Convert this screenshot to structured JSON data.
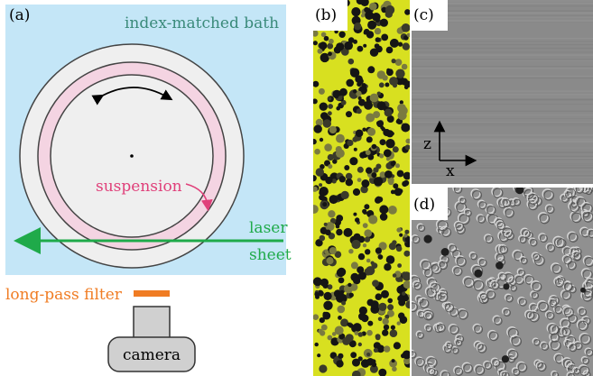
{
  "panel_a": {
    "label": "(a)",
    "bath_label": "index-matched bath",
    "suspension_label": "suspension",
    "laser_label_line1": "laser",
    "laser_label_line2": "sheet",
    "filter_label": "long-pass filter",
    "camera_label": "camera"
  },
  "panel_b": {
    "label": "(b)"
  },
  "panel_c": {
    "label": "(c)",
    "axis_z": "z",
    "axis_x": "x"
  },
  "panel_d": {
    "label": "(d)"
  },
  "colors": {
    "bath": "#c4e6f7",
    "ring_fill": "#f4d4e2",
    "vessel": "#efefef",
    "laser": "#1faa4a",
    "filter": "#f07c23",
    "suspension_text": "#e0407a",
    "bath_text": "#3a8a7a",
    "grain_bg": "#d8e020"
  }
}
